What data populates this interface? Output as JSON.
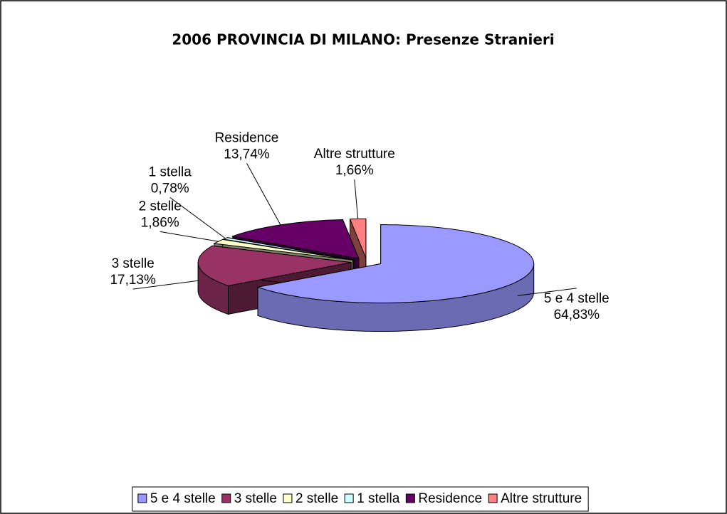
{
  "chart_data": {
    "type": "pie",
    "title": "2006 PROVINCIA DI MILANO: Presenze Stranieri",
    "categories": [
      "5 e 4 stelle",
      "3 stelle",
      "2 stelle",
      "1 stella",
      "Residence",
      "Altre strutture"
    ],
    "values": [
      64.83,
      17.13,
      1.86,
      0.78,
      13.74,
      1.66
    ],
    "value_labels": [
      "64,83%",
      "17,13%",
      "1,86%",
      "0,78%",
      "13,74%",
      "1,66%"
    ],
    "colors": [
      "#9999ff",
      "#993366",
      "#ffffcc",
      "#ccffff",
      "#660066",
      "#ff8080"
    ],
    "legend": "bottom"
  }
}
